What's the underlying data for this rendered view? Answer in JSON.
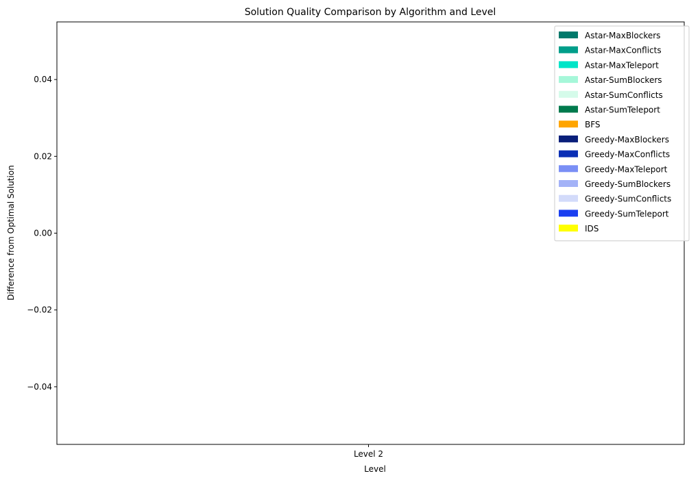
{
  "chart_data": {
    "type": "bar",
    "title": "Solution Quality Comparison by Algorithm and Level",
    "xlabel": "Level",
    "ylabel": "Difference from Optimal Solution",
    "categories": [
      "Level 2"
    ],
    "ylim": [
      -0.055,
      0.055
    ],
    "yticks": [
      -0.04,
      -0.02,
      0.0,
      0.02,
      0.04
    ],
    "ytick_labels": [
      "−0.04",
      "−0.02",
      "0.00",
      "0.02",
      "0.04"
    ],
    "grid": false,
    "legend_position": "top-right",
    "series": [
      {
        "name": "Astar-MaxBlockers",
        "color": "#00796b",
        "values": [
          0
        ]
      },
      {
        "name": "Astar-MaxConflicts",
        "color": "#009e8a",
        "values": [
          0
        ]
      },
      {
        "name": "Astar-MaxTeleport",
        "color": "#00e5c8",
        "values": [
          0
        ]
      },
      {
        "name": "Astar-SumBlockers",
        "color": "#a6f7d9",
        "values": [
          0
        ]
      },
      {
        "name": "Astar-SumConflicts",
        "color": "#d5fbea",
        "values": [
          0
        ]
      },
      {
        "name": "Astar-SumTeleport",
        "color": "#007a4d",
        "values": [
          0
        ]
      },
      {
        "name": "BFS",
        "color": "#ffa500",
        "values": [
          0
        ]
      },
      {
        "name": "Greedy-MaxBlockers",
        "color": "#0a1f7a",
        "values": [
          0
        ]
      },
      {
        "name": "Greedy-MaxConflicts",
        "color": "#0a2fb5",
        "values": [
          0
        ]
      },
      {
        "name": "Greedy-MaxTeleport",
        "color": "#7a8ff5",
        "values": [
          0
        ]
      },
      {
        "name": "Greedy-SumBlockers",
        "color": "#a3b2f7",
        "values": [
          0
        ]
      },
      {
        "name": "Greedy-SumConflicts",
        "color": "#d3dbfa",
        "values": [
          0
        ]
      },
      {
        "name": "Greedy-SumTeleport",
        "color": "#1a3ff0",
        "values": [
          0
        ]
      },
      {
        "name": "IDS",
        "color": "#ffff00",
        "values": [
          0
        ]
      }
    ]
  }
}
